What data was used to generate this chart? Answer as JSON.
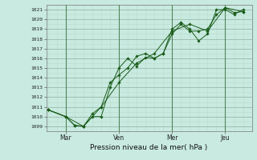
{
  "xlabel": "Pression niveau de la mer( hPa )",
  "bg_color": "#c8eae0",
  "grid_major_color": "#99bbaa",
  "grid_minor_color": "#bbddcc",
  "line_color": "#1a5c1a",
  "ylim": [
    1008.5,
    1021.5
  ],
  "yticks": [
    1009,
    1010,
    1011,
    1012,
    1013,
    1014,
    1015,
    1016,
    1017,
    1018,
    1019,
    1020,
    1021
  ],
  "xtick_labels": [
    "Mar",
    "Ven",
    "Mer",
    "Jeu"
  ],
  "xtick_positions": [
    1,
    4,
    7,
    10
  ],
  "xlim": [
    -0.1,
    11.5
  ],
  "series1_x": [
    0.0,
    1.0,
    1.5,
    2.0,
    2.5,
    3.0,
    3.5,
    4.0,
    4.5,
    5.0,
    5.5,
    6.0,
    6.5,
    7.0,
    7.5,
    8.0,
    8.5,
    9.0,
    9.5,
    10.0,
    10.5,
    11.0
  ],
  "series1_y": [
    1010.7,
    1010.0,
    1009.1,
    1009.0,
    1010.0,
    1010.0,
    1013.0,
    1015.0,
    1016.0,
    1015.2,
    1016.1,
    1016.0,
    1016.5,
    1019.0,
    1019.7,
    1019.0,
    1017.8,
    1018.5,
    1021.0,
    1021.0,
    1020.5,
    1021.0
  ],
  "series2_x": [
    0.0,
    1.0,
    1.5,
    2.0,
    2.5,
    3.0,
    3.5,
    4.0,
    4.5,
    5.0,
    5.5,
    6.0,
    6.5,
    7.0,
    7.5,
    8.0,
    8.5,
    9.0,
    9.5,
    10.0,
    10.5,
    11.0
  ],
  "series2_y": [
    1010.7,
    1010.0,
    1009.1,
    1009.0,
    1010.3,
    1011.0,
    1013.5,
    1014.3,
    1015.0,
    1016.2,
    1016.5,
    1016.0,
    1016.5,
    1018.5,
    1019.5,
    1018.8,
    1018.8,
    1019.0,
    1020.5,
    1021.2,
    1020.7,
    1020.8
  ],
  "series3_x": [
    0.0,
    1.0,
    2.0,
    3.0,
    4.0,
    5.0,
    6.0,
    7.0,
    8.0,
    9.0,
    10.0,
    11.0
  ],
  "series3_y": [
    1010.7,
    1010.0,
    1009.0,
    1011.0,
    1013.5,
    1015.5,
    1016.5,
    1018.8,
    1019.5,
    1018.8,
    1021.2,
    1020.8
  ],
  "vline_positions": [
    1,
    4,
    7,
    10
  ],
  "marker": "D",
  "marker_size": 1.8,
  "linewidth": 0.7
}
